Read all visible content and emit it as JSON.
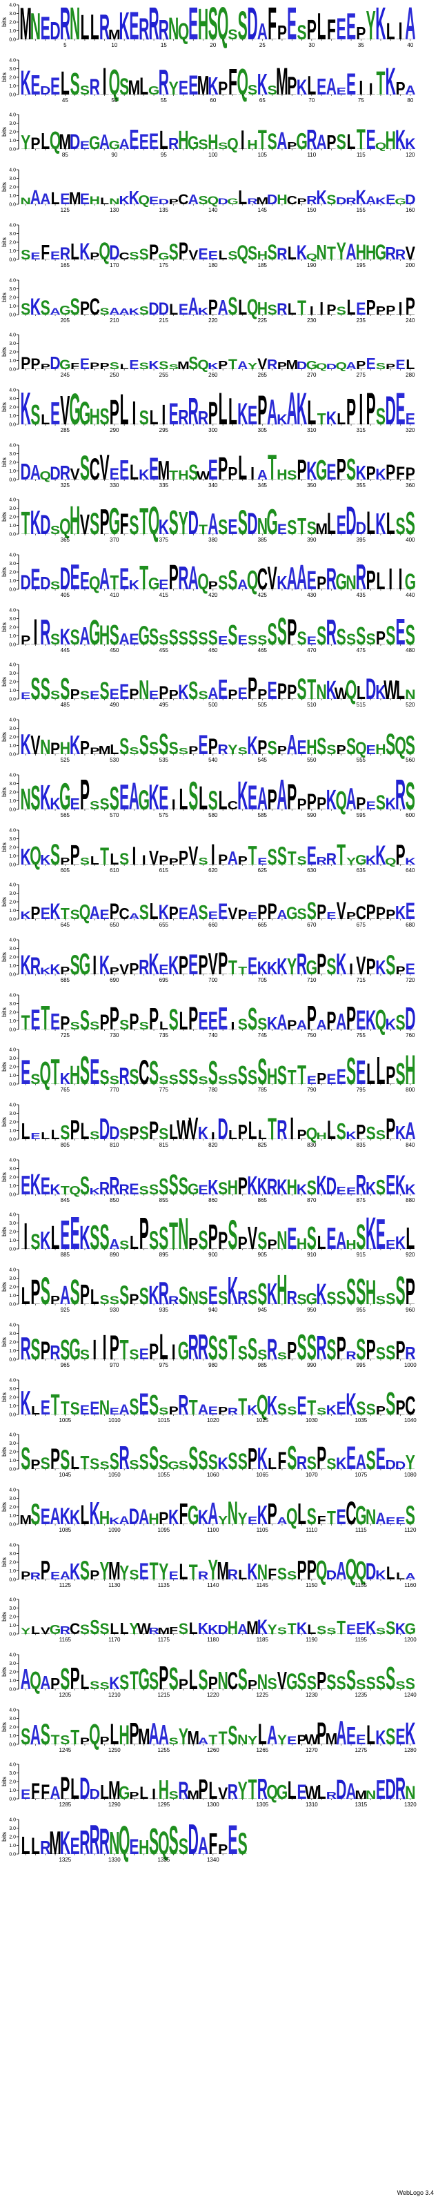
{
  "chart_data": {
    "type": "sequence-logo",
    "ylabel": "bits",
    "ylim": [
      0,
      4
    ],
    "yticks": [
      0.0,
      1.0,
      2.0,
      3.0,
      4.0
    ],
    "positions_per_row": 40,
    "total_positions": 1343,
    "label_every": 5,
    "colors": {
      "A": "#2c2cd6",
      "B": "#000000",
      "C": "#000000",
      "D": "#1f1fcf",
      "E": "#2b2bd8",
      "F": "#000000",
      "G": "#1e8f1e",
      "H": "#1e8f1e",
      "I": "#000000",
      "K": "#2121d6",
      "L": "#000000",
      "M": "#000000",
      "N": "#1f8f1f",
      "P": "#000000",
      "Q": "#1f8f1f",
      "R": "#2222d0",
      "S": "#1e8f1e",
      "T": "#1e8f1e",
      "V": "#000000",
      "W": "#000000",
      "Y": "#1e8f1e"
    },
    "consensus": "MNEDRNLLRMKERRRNQEHSQSSDAFPESPLFEEPYKLIAKEDELSSRIQSMLGRYEEMKPFQSKSMPKLEAEEIITKPAYPLQMDEGAGAEEELRHGSHSQIHTSAPGRAPSLTEQHKKNAALEMEHLNKKQEDPCASQDGLRMDHCPRKSDRKAKEGDSEFERLKPQDCSSPGSPVEELSQSHSRLKQNTYAHHGRRVSKSAGSPCSAAKSDDLEAKPASLQHSRLTIIPSLEPPPIPPPPDGFEPPSLESKSSMSQKPTAYVRPMDGQDQAPESPELKSLEVGGHSPLISLIERRRPLLKEPAKAKLTKLPIPSDEEDAQDRVSCVEELKEMTHSWEPPLIATHSPKGEPSKPKPFPTKDSQHVSPGFSTQKSYDTASESDNGESTSMLEDDLKLSSDEDSDEEQATEKTGEPRAQPSSAQCVKAAEPRGNRPLIIGPIRSKSAGHSAEGSSSSSSSESESSSSPSESRSSSSPSESESSSSPSESEEPNEPPKSSAEPEPPEPPSTNKWQLDKWLNKVNPHKPPMLSSSSSSSPEPRYSKPSPAEHSSPSQEHSQSNSKKGEPSSSEAGKEILSLSLCKEAPAPPPPKQAPESKRSKQKSPPSLTLSIIVPPPVSIPAPTESSTSERRTYGKKQPKKPEKTSQAEPCASLKPEASEEVPEPPAGSSPEVPCPPPKEKRKKPSGIKPVPRKEKPEPVPTTEKKKYRGPSKIVPKSPETETEPSSSPPSPSPLSLPEEEISSSKAPAPAPAPEKQKSDESQTKHSESSRSCSSSSSSSSSSSSHSTTEPEESELLPSHLELLSPLSDDSPSPSLWVKIDLPLLTRIPQHLSKPSSPKAEKEKTQSKRRRESSSSSGEKSHPKKRKHKSKDEERKSEKKISKLEEKSSASLPSSTNPSPPSPVSPNEHSLEAHSKEEKLLPSPASPLSSSPSKRRSNSESKRSSKHRSGKSSSSHSSSPRSPRSGSIIPTSEPLIGRRSSTSSSRSPSSRSPRSPSSPRKLETTSEENEASESSPRTAEPRTKQKSSETSKEKSSPSPCSPSPSLTSSSRSSSSGSSSSKSSPKLFSRSPSKEASEDDYMSEAKKLKHKADAHPKFGKAYNYEKPAQLSFTECGNAEESPRPEAKSPYMYSETYELTRYMRLKNFSSPPQDAQQDKLLAYLVGRCSSSLLYWRMFSLKKDHAMKYSTKLSSTEEKSSKGAQAPSPLSSKSTGSPSPLSPNCSPNSVGSSPSSSSSSSSSSASTSTPQPLHPMAASYMATTSNYLAYEPWPMAEELKSEKEFFAPLDDLMGPLIHSRMPLVRYTRQGLEWLRDA",
    "row_stretch": [
      1.15,
      0.75,
      0.55,
      0.35,
      0.45,
      0.45,
      0.3,
      0.95,
      0.7,
      0.8,
      0.7,
      0.75,
      0.6,
      0.55,
      0.85,
      0.55,
      0.45,
      0.6,
      0.65,
      0.85,
      0.6,
      0.55,
      0.95,
      0.85,
      0.75,
      0.65,
      0.65,
      0.65,
      0.55,
      0.35,
      0.65,
      0.65,
      0.6,
      0.85,
      0.75,
      0.75,
      0.7,
      0.55,
      0.85,
      0.9
    ]
  },
  "footer": "WebLogo 3.4"
}
